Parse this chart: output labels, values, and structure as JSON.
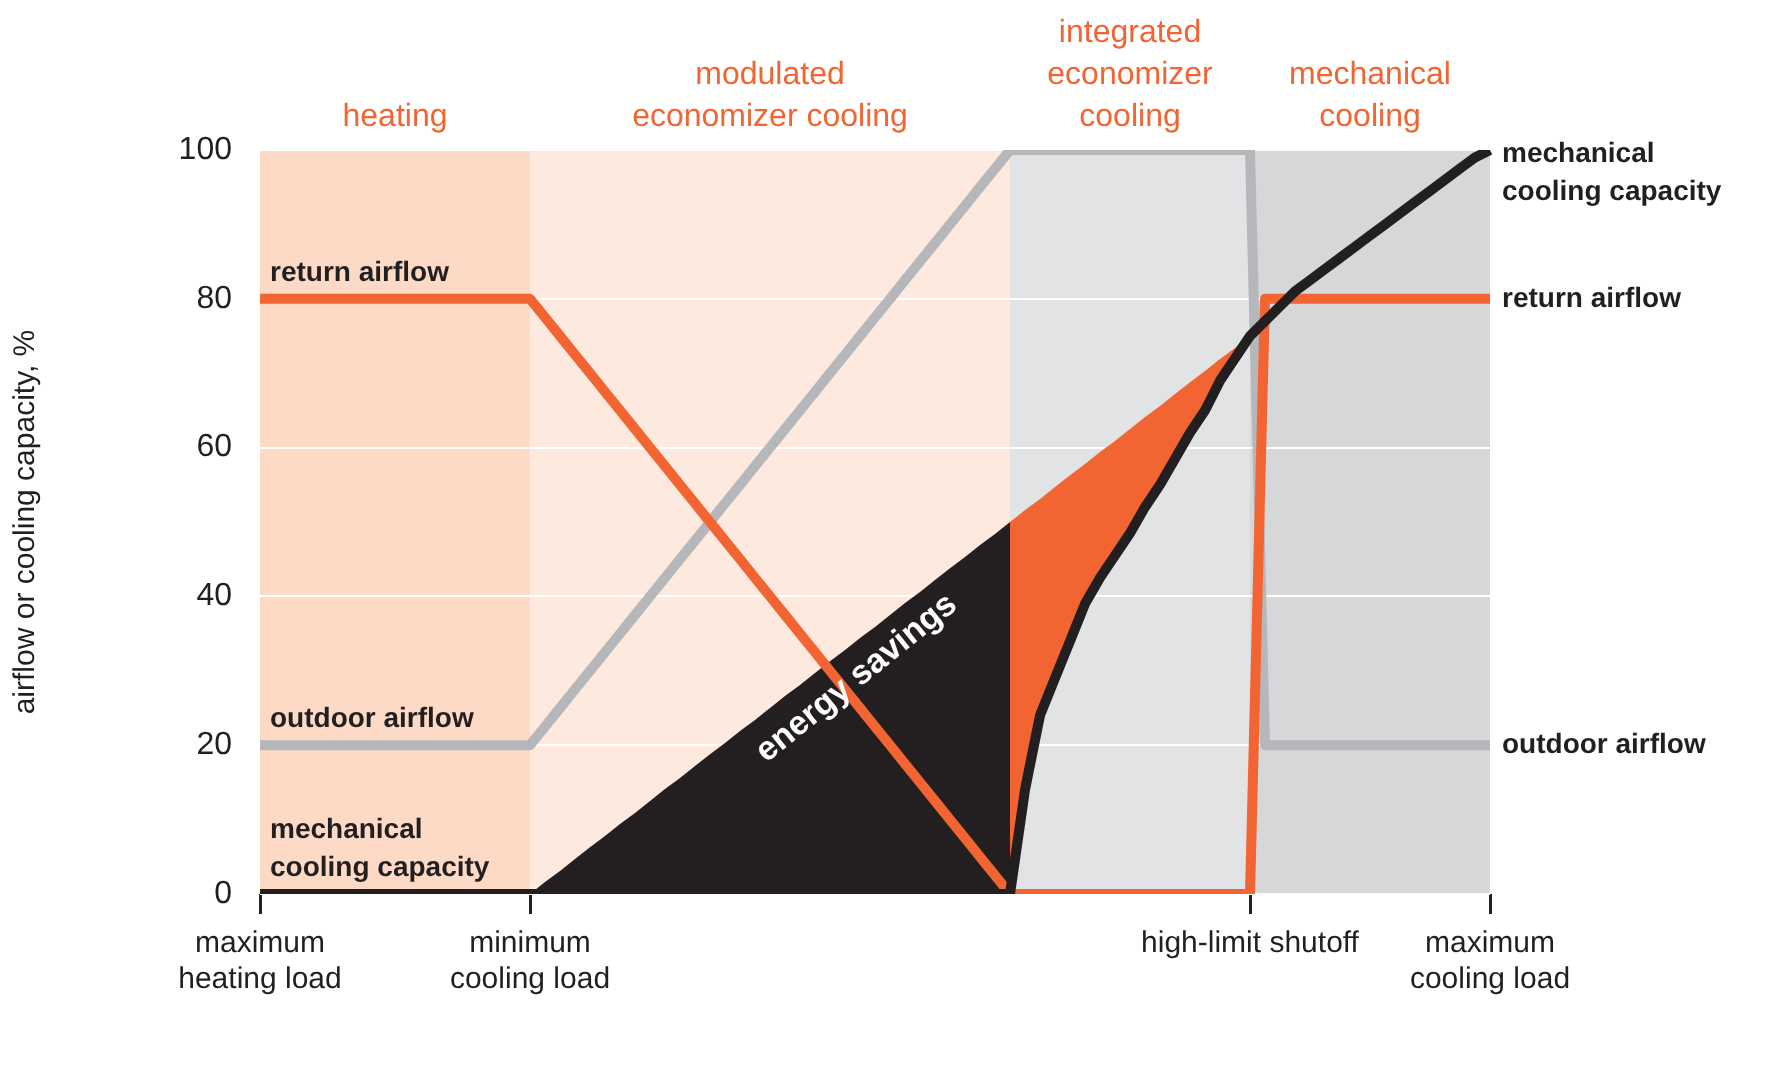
{
  "chart_data": {
    "type": "line",
    "ylabel": "airflow or cooling capacity, %",
    "categories": [
      "maximum heating load",
      null,
      null,
      null,
      null,
      null,
      null,
      null,
      null,
      null,
      null,
      null,
      null,
      null,
      null,
      null,
      null,
      null,
      "minimum cooling load",
      null,
      null,
      null,
      null,
      null,
      null,
      null,
      null,
      null,
      null,
      null,
      null,
      null,
      null,
      null,
      null,
      null,
      null,
      null,
      null,
      null,
      null,
      null,
      null,
      null,
      null,
      null,
      null,
      null,
      null,
      null,
      null,
      null,
      null,
      null,
      null,
      null,
      null,
      null,
      null,
      null,
      null,
      null,
      null,
      null,
      null,
      null,
      "high-limit shutoff",
      null,
      null,
      null,
      null,
      null,
      null,
      null,
      null,
      null,
      null,
      null,
      null,
      null,
      null,
      null,
      "maximum cooling load"
    ],
    "ylim": [
      0,
      100
    ],
    "yticks": [
      0,
      20,
      40,
      60,
      80,
      100
    ],
    "grid": "y",
    "legend": false,
    "marker": "none",
    "annotations": [
      "heating",
      "modulated economizer cooling",
      "integrated economizer cooling",
      "mechanical cooling",
      "energy savings"
    ],
    "series": [
      {
        "type": "area",
        "color": "#231f20",
        "values": [
          null,
          null,
          null,
          null,
          null,
          null,
          null,
          null,
          null,
          null,
          null,
          null,
          null,
          null,
          null,
          null,
          null,
          null,
          0,
          1.6,
          3.1,
          4.7,
          6.3,
          7.8,
          9.4,
          10.9,
          12.5,
          14.1,
          15.6,
          17.2,
          18.8,
          20.3,
          21.9,
          23.4,
          25,
          26.6,
          28.1,
          29.7,
          31.3,
          32.8,
          34.4,
          35.9,
          37.5,
          39.1,
          40.6,
          42.2,
          43.8,
          45.3,
          46.9,
          48.4,
          50,
          null,
          null,
          null,
          null,
          null,
          null,
          null,
          null,
          null,
          null,
          null,
          null,
          null,
          null,
          null,
          null,
          null,
          null,
          null,
          null,
          null,
          null,
          null,
          null,
          null,
          null,
          null,
          null,
          null,
          null,
          null,
          null
        ]
      },
      {
        "type": "area",
        "color": "#f26532",
        "values": [
          null,
          null,
          null,
          null,
          null,
          null,
          null,
          null,
          null,
          null,
          null,
          null,
          null,
          null,
          null,
          null,
          null,
          null,
          null,
          null,
          null,
          null,
          null,
          null,
          null,
          null,
          null,
          null,
          null,
          null,
          null,
          null,
          null,
          null,
          null,
          null,
          null,
          null,
          null,
          null,
          null,
          null,
          null,
          null,
          null,
          null,
          null,
          null,
          null,
          null,
          50,
          51.6,
          53.1,
          54.7,
          56.3,
          57.8,
          59.4,
          60.9,
          62.5,
          64.1,
          65.6,
          67.2,
          68.8,
          70.3,
          71.9,
          73.4,
          75,
          null,
          null,
          null,
          null,
          null,
          null,
          null,
          null,
          null,
          null,
          null,
          null,
          null,
          null,
          null,
          null
        ]
      },
      {
        "name": "outdoor airflow",
        "color": "#b5b7ba",
        "values": [
          20,
          20,
          20,
          20,
          20,
          20,
          20,
          20,
          20,
          20,
          20,
          20,
          20,
          20,
          20,
          20,
          20,
          20,
          20,
          22.5,
          25,
          27.5,
          30,
          32.5,
          35,
          37.5,
          40,
          42.5,
          45,
          47.5,
          50,
          52.5,
          55,
          57.5,
          60,
          62.5,
          65,
          67.5,
          70,
          72.5,
          75,
          77.5,
          80,
          82.5,
          85,
          87.5,
          90,
          92.5,
          95,
          97.5,
          100,
          100,
          100,
          100,
          100,
          100,
          100,
          100,
          100,
          100,
          100,
          100,
          100,
          100,
          100,
          100,
          100,
          20,
          20,
          20,
          20,
          20,
          20,
          20,
          20,
          20,
          20,
          20,
          20,
          20,
          20,
          20,
          20
        ]
      },
      {
        "name": "return airflow",
        "color": "#f26532",
        "values": [
          80,
          80,
          80,
          80,
          80,
          80,
          80,
          80,
          80,
          80,
          80,
          80,
          80,
          80,
          80,
          80,
          80,
          80,
          80,
          77.5,
          75,
          72.5,
          70,
          67.5,
          65,
          62.5,
          60,
          57.5,
          55,
          52.5,
          50,
          47.5,
          45,
          42.5,
          40,
          37.5,
          35,
          32.5,
          30,
          27.5,
          25,
          22.5,
          20,
          17.5,
          15,
          12.5,
          10,
          7.5,
          5,
          2.5,
          0,
          0,
          0,
          0,
          0,
          0,
          0,
          0,
          0,
          0,
          0,
          0,
          0,
          0,
          0,
          0,
          0,
          80,
          80,
          80,
          80,
          80,
          80,
          80,
          80,
          80,
          80,
          80,
          80,
          80,
          80,
          80,
          80
        ]
      },
      {
        "name": "mechanical cooling capacity",
        "color": "#231f20",
        "values": [
          0,
          0,
          0,
          0,
          0,
          0,
          0,
          0,
          0,
          0,
          0,
          0,
          0,
          0,
          0,
          0,
          0,
          0,
          0,
          0,
          0,
          0,
          0,
          0,
          0,
          0,
          0,
          0,
          0,
          0,
          0,
          0,
          0,
          0,
          0,
          0,
          0,
          0,
          0,
          0,
          0,
          0,
          0,
          0,
          0,
          0,
          0,
          0,
          0,
          0,
          0,
          14,
          24,
          29,
          34,
          39,
          42.5,
          45.5,
          48.5,
          52,
          55,
          58.5,
          62,
          65,
          69,
          72,
          75,
          77,
          79,
          81,
          82.5,
          84,
          85.5,
          87,
          88.5,
          90,
          91.5,
          93,
          94.5,
          96,
          97.5,
          99,
          100
        ]
      }
    ]
  }
}
